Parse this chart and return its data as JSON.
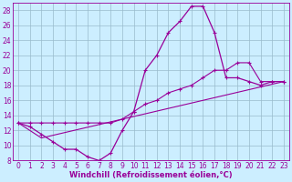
{
  "xlabel": "Windchill (Refroidissement éolien,°C)",
  "bg_color": "#cceeff",
  "line_color": "#990099",
  "grid_color": "#99bbcc",
  "xlim": [
    -0.5,
    23.5
  ],
  "ylim": [
    8,
    29
  ],
  "xticks": [
    0,
    1,
    2,
    3,
    4,
    5,
    6,
    7,
    8,
    9,
    10,
    11,
    12,
    13,
    14,
    15,
    16,
    17,
    18,
    19,
    20,
    21,
    22,
    23
  ],
  "yticks": [
    8,
    10,
    12,
    14,
    16,
    18,
    20,
    22,
    24,
    26,
    28
  ],
  "line1_x": [
    0,
    1,
    2,
    3,
    4,
    5,
    6,
    7,
    8,
    9,
    10,
    11,
    12,
    13,
    14,
    15,
    16,
    17,
    18,
    19,
    20,
    21,
    22,
    23
  ],
  "line1_y": [
    13,
    12.5,
    11.5,
    10.5,
    9.5,
    9.5,
    8.5,
    8.0,
    9.0,
    12,
    14.5,
    20,
    22,
    25,
    26.5,
    28.5,
    28.5,
    25,
    19,
    19,
    18.5,
    18,
    18.5,
    18.5
  ],
  "line2_x": [
    0,
    2,
    23
  ],
  "line2_y": [
    13,
    11,
    18.5
  ],
  "line3_x": [
    0,
    1,
    2,
    3,
    4,
    5,
    6,
    7,
    8,
    9,
    10,
    11,
    12,
    13,
    14,
    15,
    16,
    17,
    18,
    19,
    20,
    21,
    22,
    23
  ],
  "line3_y": [
    13,
    13,
    13,
    13,
    13,
    13,
    13,
    13,
    13,
    13.5,
    14.5,
    15.5,
    16,
    17,
    17.5,
    18,
    19,
    20,
    20,
    21,
    21,
    18.5,
    18.5,
    18.5
  ],
  "tick_fontsize": 5.5,
  "xlabel_fontsize": 6.0
}
